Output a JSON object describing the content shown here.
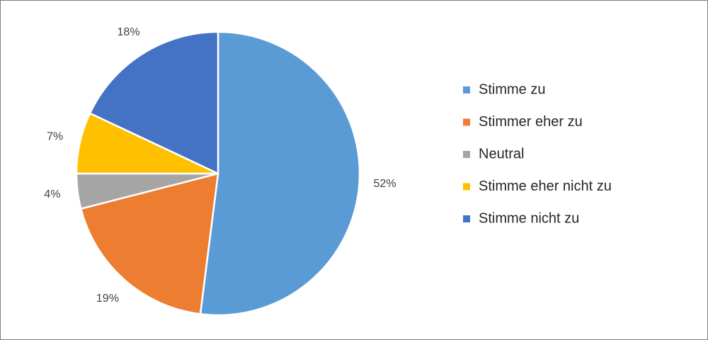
{
  "chart_data": {
    "type": "pie",
    "categories": [
      "Stimme zu",
      "Stimmer eher zu",
      "Neutral",
      "Stimme eher nicht zu",
      "Stimme nicht zu"
    ],
    "values": [
      52,
      19,
      4,
      7,
      18
    ],
    "value_labels": [
      "52%",
      "19%",
      "4%",
      "7%",
      "18%"
    ],
    "colors": [
      "#5b9bd5",
      "#ed7d31",
      "#a5a5a5",
      "#ffc000",
      "#4472c4"
    ],
    "legend": "right"
  }
}
